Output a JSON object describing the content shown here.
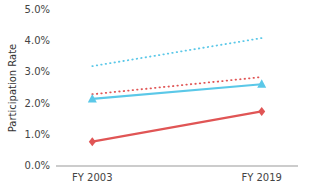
{
  "chart_data": {
    "type": "line",
    "categories": [
      "FY 2003",
      "FY 2019"
    ],
    "series": [
      {
        "color": "#5bc8e8",
        "line_style": "dotted",
        "values": [
          3.2,
          4.1
        ]
      },
      {
        "color": "#e05555",
        "line_style": "dotted",
        "values": [
          2.3,
          2.85
        ]
      },
      {
        "color": "#5bc8e8",
        "line_style": "solid",
        "marker": "triangle",
        "values": [
          2.15,
          2.62
        ]
      },
      {
        "color": "#e05555",
        "line_style": "solid",
        "marker": "diamond",
        "values": [
          0.78,
          1.75
        ]
      }
    ],
    "y_label": "Participation Rate",
    "ylim": [
      0.0,
      5.0
    ],
    "yticks": [
      {
        "value": 0.0,
        "label": "0.0%"
      },
      {
        "value": 1.0,
        "label": "1.0%"
      },
      {
        "value": 2.0,
        "label": "2.0%"
      },
      {
        "value": 3.0,
        "label": "3.0%"
      },
      {
        "value": 4.0,
        "label": "4.0%"
      },
      {
        "value": 5.0,
        "label": "5.0%"
      }
    ],
    "grid": false
  }
}
